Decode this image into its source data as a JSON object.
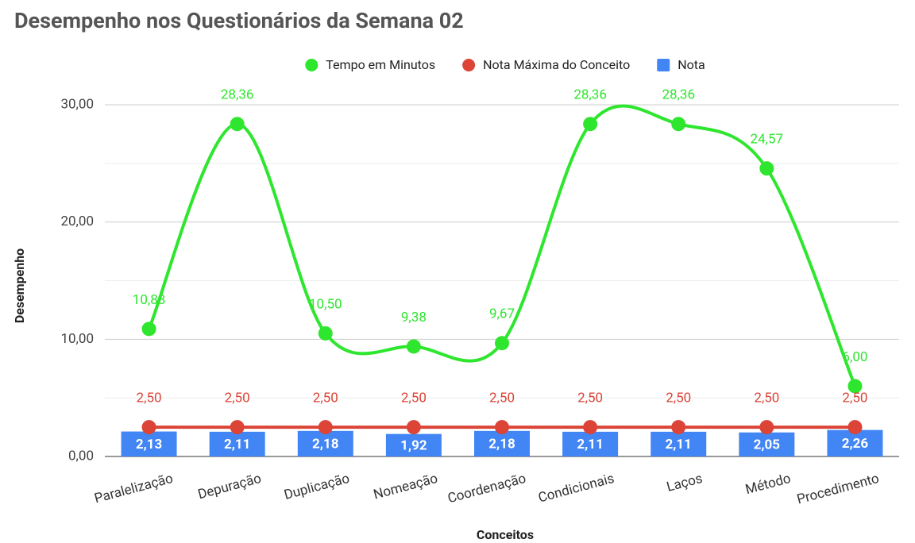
{
  "chart_data": {
    "type": "combo",
    "title": "Desempenho nos Questionários da Semana 02",
    "x_label": "Conceitos",
    "y_label": "Desempenho",
    "categories": [
      "Paralelização",
      "Depuração",
      "Duplicação",
      "Nomeação",
      "Coordenação",
      "Condicionais",
      "Laços",
      "Método",
      "Procedimento"
    ],
    "series": [
      {
        "name": "Tempo em Minutos",
        "type": "line",
        "color": "#2ee62e",
        "values": [
          10.88,
          28.36,
          10.5,
          9.38,
          9.67,
          28.36,
          28.36,
          24.57,
          6.0
        ],
        "value_labels": [
          "10,88",
          "28,36",
          "10,50",
          "9,38",
          "9,67",
          "28,36",
          "28,36",
          "24,57",
          "6,00"
        ]
      },
      {
        "name": "Nota Máxima do Conceito",
        "type": "line",
        "color": "#db4437",
        "values": [
          2.5,
          2.5,
          2.5,
          2.5,
          2.5,
          2.5,
          2.5,
          2.5,
          2.5
        ],
        "value_labels": [
          "2,50",
          "2,50",
          "2,50",
          "2,50",
          "2,50",
          "2,50",
          "2,50",
          "2,50",
          "2,50"
        ]
      },
      {
        "name": "Nota",
        "type": "bar",
        "color": "#4285f4",
        "values": [
          2.13,
          2.11,
          2.18,
          1.92,
          2.18,
          2.11,
          2.11,
          2.05,
          2.26
        ],
        "value_labels": [
          "2,13",
          "2,11",
          "2,18",
          "1,92",
          "2,18",
          "2,11",
          "2,11",
          "2,05",
          "2,26"
        ]
      }
    ],
    "ylim": [
      0,
      30
    ],
    "yticks": [
      {
        "value": 0,
        "label": "0,00"
      },
      {
        "value": 10,
        "label": "10,00"
      },
      {
        "value": 20,
        "label": "20,00"
      },
      {
        "value": 30,
        "label": "30,00"
      }
    ],
    "minor_yticks": [
      5,
      15,
      25
    ],
    "grid": true,
    "legend": "top"
  }
}
